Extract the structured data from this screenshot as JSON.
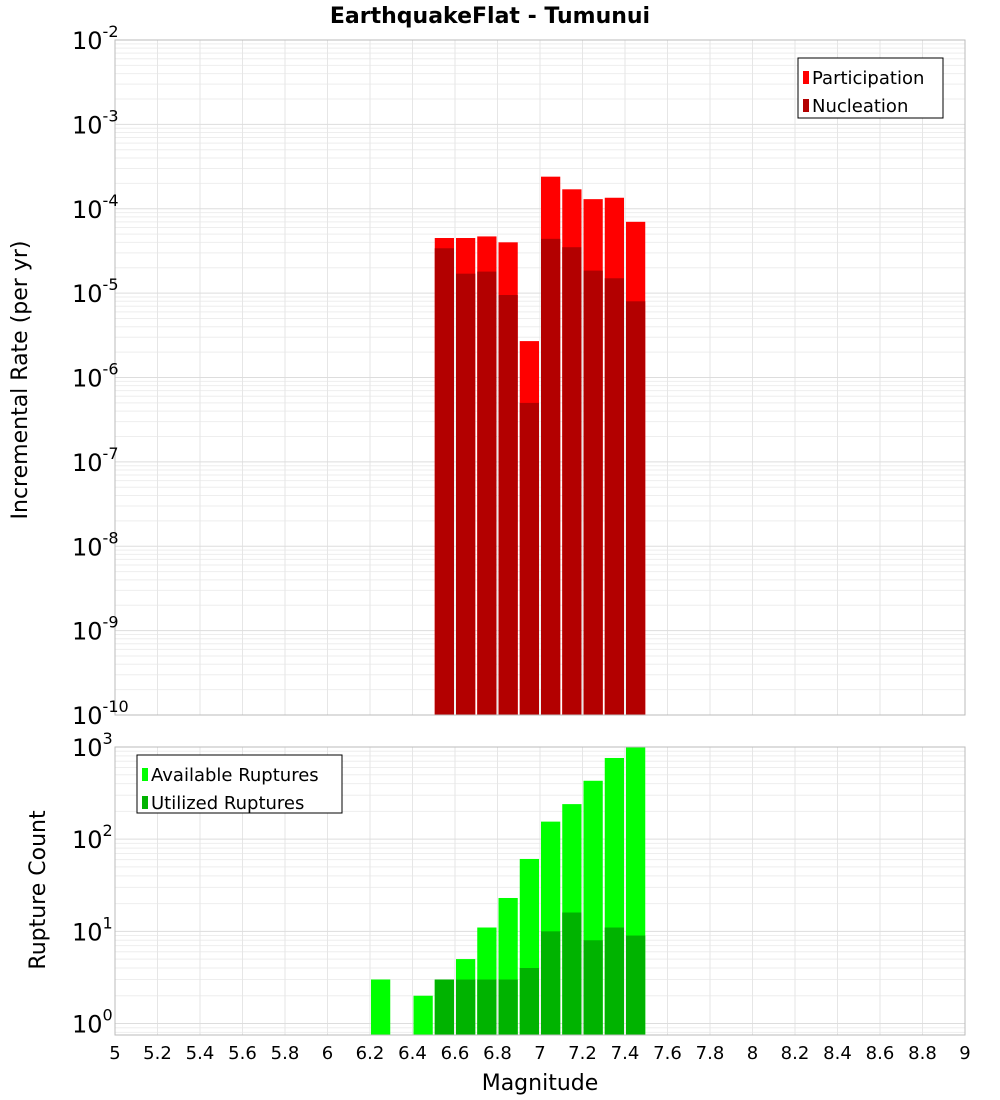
{
  "chart_data": [
    {
      "type": "bar",
      "title": "EarthquakeFlat - Tumunui",
      "xlabel": "Magnitude",
      "ylabel": "Incremental Rate (per yr)",
      "yscale": "log",
      "xlim": [
        5,
        9
      ],
      "ylim": [
        1e-10,
        0.01
      ],
      "grid": true,
      "legend_position": "top-right",
      "bin_width": 0.1,
      "x": [
        6.55,
        6.65,
        6.75,
        6.85,
        6.95,
        7.05,
        7.15,
        7.25,
        7.35,
        7.45
      ],
      "series": [
        {
          "name": "Participation",
          "color": "#ff0000",
          "values": [
            4.5e-05,
            4.5e-05,
            4.7e-05,
            4e-05,
            2.7e-06,
            0.00024,
            0.00017,
            0.00013,
            0.000135,
            7e-05
          ]
        },
        {
          "name": "Nucleation",
          "color": "#b30000",
          "values": [
            3.4e-05,
            1.7e-05,
            1.8e-05,
            9.5e-06,
            5e-07,
            4.4e-05,
            3.5e-05,
            1.85e-05,
            1.5e-05,
            8e-06
          ]
        }
      ],
      "ytick_labels": [
        {
          "base": "10",
          "exp": "-10"
        },
        {
          "base": "10",
          "exp": "-9"
        },
        {
          "base": "10",
          "exp": "-8"
        },
        {
          "base": "10",
          "exp": "-7"
        },
        {
          "base": "10",
          "exp": "-6"
        },
        {
          "base": "10",
          "exp": "-5"
        },
        {
          "base": "10",
          "exp": "-4"
        },
        {
          "base": "10",
          "exp": "-3"
        },
        {
          "base": "10",
          "exp": "-2"
        }
      ]
    },
    {
      "type": "bar",
      "title": "",
      "xlabel": "Magnitude",
      "ylabel": "Rupture Count",
      "yscale": "log",
      "xlim": [
        5,
        9
      ],
      "ylim": [
        0.75,
        1000
      ],
      "grid": true,
      "legend_position": "top-left",
      "bin_width": 0.1,
      "x": [
        6.25,
        6.45,
        6.55,
        6.65,
        6.75,
        6.85,
        6.95,
        7.05,
        7.15,
        7.25,
        7.35,
        7.45
      ],
      "series": [
        {
          "name": "Available Ruptures",
          "color": "#00ff00",
          "values": [
            3,
            2,
            3,
            5,
            11,
            23,
            61,
            155,
            240,
            430,
            760,
            1000
          ]
        },
        {
          "name": "Utilized Ruptures",
          "color": "#00b300",
          "values": [
            null,
            null,
            3,
            3,
            3,
            3,
            4,
            10,
            16,
            8,
            11,
            9
          ]
        }
      ],
      "ytick_labels": [
        {
          "base": "10",
          "exp": "0"
        },
        {
          "base": "10",
          "exp": "1"
        },
        {
          "base": "10",
          "exp": "2"
        },
        {
          "base": "10",
          "exp": "3"
        }
      ],
      "xtick_labels": [
        "5",
        "5.2",
        "5.4",
        "5.6",
        "5.8",
        "6",
        "6.2",
        "6.4",
        "6.6",
        "6.8",
        "7",
        "7.2",
        "7.4",
        "7.6",
        "7.8",
        "8",
        "8.2",
        "8.4",
        "8.6",
        "8.8",
        "9"
      ]
    }
  ]
}
